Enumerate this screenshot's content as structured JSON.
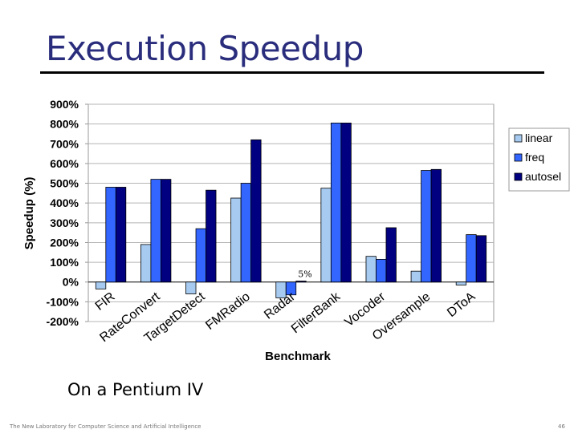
{
  "slide": {
    "title": "Execution Speedup",
    "caption": "On a Pentium IV",
    "footer": "The New Laboratory for Computer Science and Artificial Intelligence",
    "page_number": "46"
  },
  "chart_data": {
    "type": "bar",
    "title": "",
    "xlabel": "Benchmark",
    "ylabel": "Speedup (%)",
    "ylim": [
      -200,
      900
    ],
    "yticks": [
      -200,
      -100,
      0,
      100,
      200,
      300,
      400,
      500,
      600,
      700,
      800,
      900
    ],
    "ytick_labels": [
      "-200%",
      "-100%",
      "0%",
      "100%",
      "200%",
      "300%",
      "400%",
      "500%",
      "600%",
      "700%",
      "800%",
      "900%"
    ],
    "grid": true,
    "legend_position": "right",
    "categories": [
      "FIR",
      "RateConvert",
      "TargetDetect",
      "FMRadio",
      "Radar",
      "FilterBank",
      "Vocoder",
      "Oversample",
      "DToA"
    ],
    "series": [
      {
        "name": "linear",
        "color": "#a6caf0",
        "values": [
          -35,
          190,
          -60,
          425,
          -80,
          475,
          130,
          55,
          -15
        ]
      },
      {
        "name": "freq",
        "color": "#3366ff",
        "values": [
          480,
          520,
          270,
          500,
          -65,
          805,
          115,
          565,
          240
        ]
      },
      {
        "name": "autosel",
        "color": "#000080",
        "values": [
          480,
          520,
          465,
          720,
          5,
          805,
          275,
          570,
          235
        ]
      }
    ],
    "annotations": [
      {
        "text": "5%",
        "category": "Radar",
        "value": 5
      }
    ]
  }
}
